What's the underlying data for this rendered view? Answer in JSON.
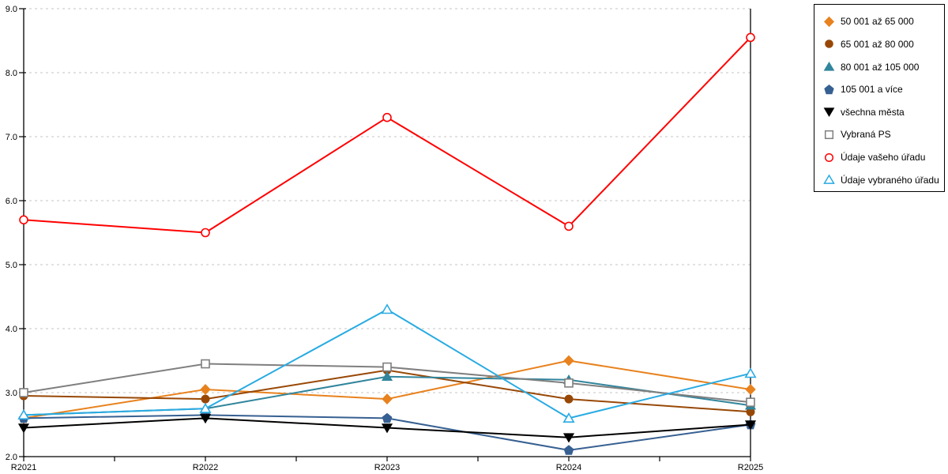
{
  "chart_data": {
    "type": "line",
    "categories": [
      "R2021",
      "R2022",
      "R2023",
      "R2024",
      "R2025"
    ],
    "series": [
      {
        "name": "50 001 až 65 000",
        "marker": "diamond",
        "style": "solid",
        "color": "#E8821E",
        "values": [
          2.6,
          3.05,
          2.9,
          3.5,
          3.05
        ]
      },
      {
        "name": "65 001 až 80 000",
        "marker": "circle",
        "style": "solid",
        "color": "#984806",
        "values": [
          2.95,
          2.9,
          3.35,
          2.9,
          2.7
        ]
      },
      {
        "name": "80 001 až 105 000",
        "marker": "triangle-up",
        "style": "solid",
        "color": "#31859C",
        "values": [
          2.65,
          2.75,
          3.25,
          3.2,
          2.8
        ]
      },
      {
        "name": "105 001 a více",
        "marker": "pentagon",
        "style": "solid",
        "color": "#376092",
        "values": [
          2.6,
          2.65,
          2.6,
          2.1,
          2.5
        ]
      },
      {
        "name": "všechna města",
        "marker": "triangle-down",
        "style": "solid",
        "color": "#000000",
        "values": [
          2.45,
          2.6,
          2.45,
          2.3,
          2.5
        ]
      },
      {
        "name": "Vybraná PS",
        "marker": "square",
        "style": "open",
        "color": "#7F7F7F",
        "values": [
          3.0,
          3.45,
          3.4,
          3.15,
          2.85
        ]
      },
      {
        "name": "Údaje vašeho úřadu",
        "marker": "circle",
        "style": "open",
        "color": "#FF0000",
        "values": [
          5.7,
          5.5,
          7.3,
          5.6,
          8.55
        ]
      },
      {
        "name": "Údaje vybraného úřadu",
        "marker": "triangle-up",
        "style": "open",
        "color": "#29ABE2",
        "values": [
          2.65,
          2.75,
          4.3,
          2.6,
          3.3
        ]
      }
    ],
    "title": "",
    "xlabel": "",
    "ylabel": "",
    "ylim": [
      2.0,
      9.0
    ],
    "ytick_labels": [
      "2.0",
      "3.0",
      "4.0",
      "5.0",
      "6.0",
      "7.0",
      "8.0",
      "9.0"
    ],
    "grid": "horizontal-dashed",
    "grid_color": "#C6C6C6",
    "axis_color": "#000000",
    "legend_position": "top-right"
  }
}
